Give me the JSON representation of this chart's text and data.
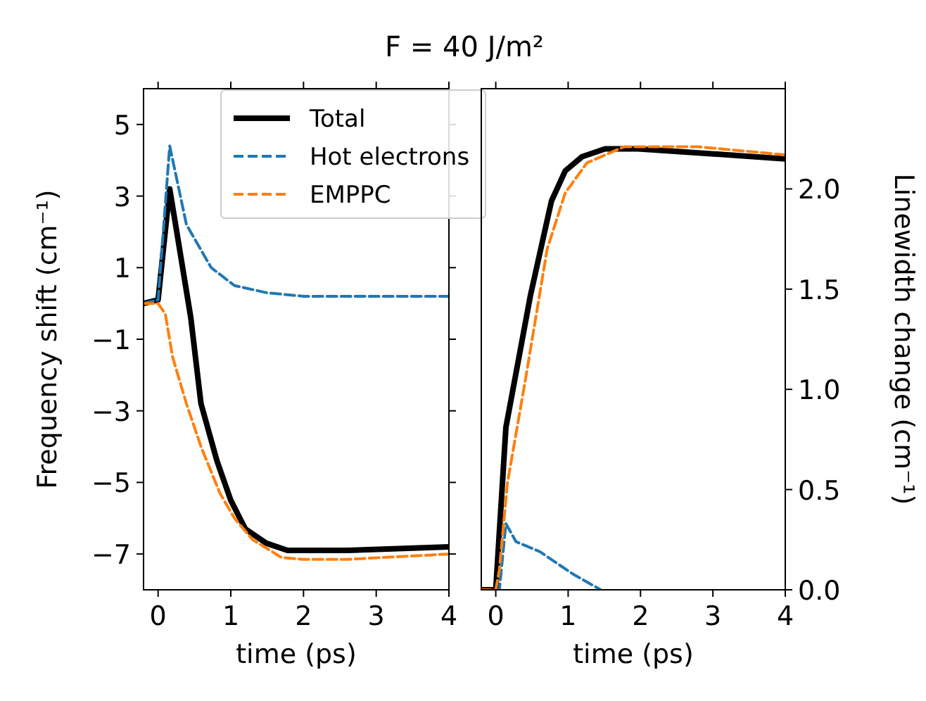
{
  "chart_data": [
    {
      "type": "line",
      "title": "F = 40 J/m²",
      "xlabel": "time (ps)",
      "ylabel": "Frequency shift (cm⁻¹)",
      "xlim": [
        -0.2,
        4
      ],
      "xticks": [
        0,
        1,
        2,
        3,
        4
      ],
      "ylim": [
        -8,
        6
      ],
      "yticks": [
        5,
        3,
        1,
        {
          "value": -1,
          "label": "−1"
        },
        {
          "value": -3,
          "label": "−3"
        },
        {
          "value": -5,
          "label": "−5"
        },
        {
          "value": -7,
          "label": "−7"
        }
      ],
      "legend": "top right",
      "grid": false,
      "series": [
        {
          "name": "Total",
          "color": "#000000",
          "line_style": "solid",
          "x": [
            -0.2,
            0,
            0.16,
            0.45,
            0.59,
            0.81,
            1.0,
            1.2,
            1.49,
            1.78,
            2.6,
            4
          ],
          "values": [
            0,
            0.1,
            3.2,
            -0.4,
            -2.8,
            -4.4,
            -5.5,
            -6.3,
            -6.7,
            -6.9,
            -6.9,
            -6.8
          ]
        },
        {
          "name": "Hot electrons",
          "color": "#1f77b4",
          "line_style": "dashed",
          "x": [
            -0.2,
            0,
            0.16,
            0.39,
            0.73,
            1.05,
            1.49,
            2.0,
            4
          ],
          "values": [
            0,
            0.1,
            4.4,
            2.2,
            1.0,
            0.5,
            0.3,
            0.2,
            0.2
          ]
        },
        {
          "name": "EMPPC",
          "color": "#ff7f0e",
          "line_style": "dashed",
          "x": [
            -0.2,
            0,
            0.1,
            0.2,
            0.39,
            0.59,
            0.85,
            1.05,
            1.3,
            1.7,
            2.0,
            2.6,
            4
          ],
          "values": [
            0,
            0,
            -0.3,
            -1.5,
            -2.8,
            -4.0,
            -5.3,
            -6.0,
            -6.6,
            -7.1,
            -7.15,
            -7.15,
            -7.0
          ]
        }
      ]
    },
    {
      "type": "line",
      "xlabel": "time (ps)",
      "y2label": "Linewidth change (cm⁻¹)",
      "xlim": [
        -0.2,
        4
      ],
      "xticks": [
        0,
        1,
        2,
        3,
        4
      ],
      "y2lim": [
        0,
        2.5
      ],
      "y2ticks": [
        {
          "value": 0,
          "label": "0.0"
        },
        {
          "value": 0.5,
          "label": "0.5"
        },
        {
          "value": 1,
          "label": "1.0"
        },
        {
          "value": 1.5,
          "label": "1.5"
        },
        {
          "value": 2,
          "label": "2.0"
        }
      ],
      "grid": false,
      "series": [
        {
          "color": "#000000",
          "line_style": "solid",
          "axis": "y2",
          "x": [
            -0.2,
            0,
            0.14,
            0.48,
            0.77,
            0.96,
            1.19,
            1.51,
            1.97,
            4
          ],
          "values": [
            0,
            0,
            0.81,
            1.47,
            1.94,
            2.09,
            2.16,
            2.2,
            2.2,
            2.15
          ]
        },
        {
          "color": "#1f77b4",
          "line_style": "dashed",
          "axis": "y2",
          "x": [
            -0.2,
            0.05,
            0.14,
            0.28,
            0.61,
            1.06,
            1.45
          ],
          "values": [
            0,
            0,
            0.33,
            0.24,
            0.19,
            0.08,
            0
          ]
        },
        {
          "color": "#ff7f0e",
          "line_style": "dashed",
          "axis": "y2",
          "x": [
            -0.2,
            0,
            0.05,
            0.16,
            0.42,
            0.71,
            0.96,
            1.26,
            1.77,
            2.8,
            4
          ],
          "values": [
            0,
            0,
            0.1,
            0.53,
            1.07,
            1.7,
            1.98,
            2.13,
            2.21,
            2.21,
            2.17
          ]
        }
      ]
    }
  ]
}
